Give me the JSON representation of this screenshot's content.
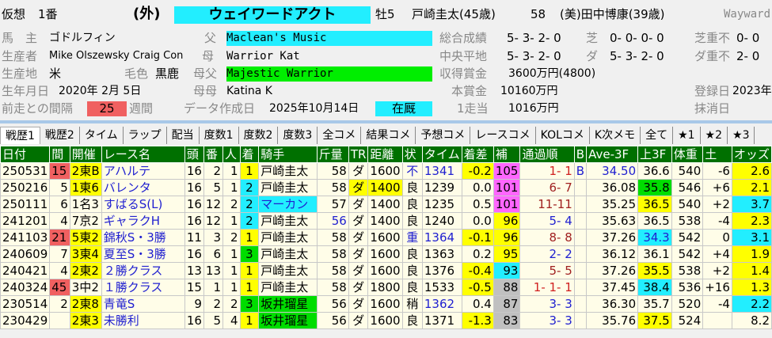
{
  "header": {
    "kaso": "仮想",
    "number": "1番",
    "gate": "(外)",
    "horse_name": "ウェイワードアクト",
    "sex_age": "牡5",
    "jockey": "戸崎圭太(45歳)",
    "weight": "58",
    "trainer": "(美)田中博康(39歳)",
    "english_name": "Wayward",
    "owner_label": "馬　主",
    "owner": "ゴドルフィン",
    "breeder_label": "生産者",
    "breeder": "Mike Olszewsky Craig Con",
    "origin_label": "生産地",
    "origin": "米",
    "color_label": "毛色",
    "color": "黒鹿",
    "birth_label": "生年月日",
    "birth": "2020年 2月 5日",
    "interval_label": "前走との間隔",
    "interval": "25",
    "interval_unit": "週間",
    "sire_label": "父",
    "sire": "Maclean's Music",
    "dam_label": "母",
    "dam": "Warrior Kat",
    "damsire_label": "母父",
    "damsire": "Majestic Warrior",
    "damdam_label": "母母",
    "damdam": "Katina K",
    "created_label": "データ作成日",
    "created": "2025年10月14日",
    "status": "在厩",
    "total_label": "総合成績",
    "total": "5- 3- 2- 0",
    "turf_label": "芝",
    "turf": "0- 0- 0- 0",
    "turf_heavy_label": "芝重不",
    "turf_heavy": "0- 0",
    "central_label": "中央平地",
    "central": "5- 3- 2- 0",
    "dirt_label": "ダ",
    "dirt": "5- 3- 2- 0",
    "dirt_heavy_label": "ダ重不",
    "dirt_heavy": "2- 0",
    "earn_label": "収得賞金",
    "earn": "3600万円(4800)",
    "prize_label": "本賞金",
    "prize": "10160万円",
    "per_label": "1走当",
    "per": "1016万円",
    "reg_label": "登録日",
    "reg": "2023年",
    "del_label": "抹消日"
  },
  "tabs": [
    "戦歴1",
    "戦歴2",
    "タイム",
    "ラップ",
    "配当",
    "度数1",
    "度数2",
    "度数3",
    "全コメ",
    "結果コメ",
    "予想コメ",
    "レースコメ",
    "KOLコメ",
    "K次メモ",
    "全て",
    "★1",
    "★2",
    "★3"
  ],
  "columns": [
    "日付",
    "間",
    "開催",
    "レース名",
    "頭",
    "番",
    "人",
    "着",
    "騎手",
    "斤量",
    "TR",
    "距離",
    "状",
    "タイム",
    "着差",
    "補",
    "通過順",
    "B",
    "Ave-3F",
    "上3F",
    "体重",
    "土",
    "オッズ"
  ],
  "rows": [
    [
      "250531",
      "15",
      "2東B",
      "アハルテ",
      "16",
      "2",
      "1",
      "1",
      "戸崎圭太",
      "58",
      "ダ",
      "1600",
      "不",
      "1341",
      "-0.2",
      "105",
      "1- 1",
      "B",
      "34.50",
      "36.6",
      "540",
      "-6",
      "2.6"
    ],
    [
      "250216",
      "5",
      "1東6",
      "バレンタ",
      "16",
      "5",
      "1",
      "2",
      "戸崎圭太",
      "58",
      "ダ",
      "1400",
      "良",
      "1239",
      "0.0",
      "101",
      "6- 7",
      "",
      "36.08",
      "35.8",
      "546",
      "+6",
      "2.1"
    ],
    [
      "250111",
      "6",
      "1名3",
      "すばるS(L)",
      "16",
      "12",
      "2",
      "2",
      "マーカン",
      "57",
      "ダ",
      "1400",
      "良",
      "1235",
      "0.5",
      "101",
      "11-11",
      "",
      "35.25",
      "36.5",
      "540",
      "+2",
      "3.7"
    ],
    [
      "241201",
      "4",
      "7京2",
      "ギャラクH",
      "16",
      "12",
      "1",
      "2",
      "戸崎圭太",
      "56",
      "ダ",
      "1400",
      "良",
      "1240",
      "0.0",
      "96",
      "5- 4",
      "",
      "35.63",
      "36.5",
      "538",
      "-4",
      "2.3"
    ],
    [
      "241103",
      "21",
      "5東2",
      "錦秋S・3勝",
      "11",
      "3",
      "2",
      "1",
      "戸崎圭太",
      "58",
      "ダ",
      "1600",
      "重",
      "1364",
      "-0.1",
      "96",
      "8- 8",
      "",
      "37.26",
      "34.3",
      "542",
      "0",
      "3.1"
    ],
    [
      "240609",
      "7",
      "3東4",
      "夏至S・3勝",
      "16",
      "6",
      "1",
      "3",
      "戸崎圭太",
      "58",
      "ダ",
      "1600",
      "良",
      "1363",
      "0.2",
      "95",
      "2- 2",
      "",
      "36.12",
      "36.1",
      "542",
      "+4",
      "1.9"
    ],
    [
      "240421",
      "4",
      "2東2",
      "２勝クラス",
      "13",
      "13",
      "1",
      "1",
      "戸崎圭太",
      "58",
      "ダ",
      "1600",
      "良",
      "1376",
      "-0.4",
      "93",
      "5- 5",
      "",
      "37.26",
      "35.5",
      "538",
      "+2",
      "1.4"
    ],
    [
      "240324",
      "45",
      "3中2",
      "１勝クラス",
      "15",
      "1",
      "1",
      "1",
      "戸崎圭太",
      "58",
      "ダ",
      "1800",
      "良",
      "1533",
      "-0.5",
      "88",
      "1- 1- 1",
      "",
      "37.45",
      "38.4",
      "536",
      "+16",
      "1.3"
    ],
    [
      "230514",
      "2",
      "2東8",
      "青竜S",
      "9",
      "2",
      "2",
      "3",
      "坂井瑠星",
      "56",
      "ダ",
      "1600",
      "稍",
      "1362",
      "0.4",
      "87",
      "3- 3",
      "",
      "36.30",
      "35.7",
      "520",
      "-4",
      "2.2"
    ],
    [
      "230429",
      "",
      "2東3",
      "未勝利",
      "16",
      "5",
      "4",
      "1",
      "坂井瑠星",
      "56",
      "ダ",
      "1600",
      "良",
      "1371",
      "-1.3",
      "83",
      "3- 3",
      "",
      "35.76",
      "37.5",
      "524",
      "",
      "8.2"
    ]
  ],
  "cell_classes": [
    [
      "",
      "pr",
      "y",
      "blue",
      "r",
      "r",
      "r",
      "y c",
      "",
      "r",
      "c",
      "r",
      "blue c",
      "blue",
      "y r",
      "pk",
      "red r",
      "blue",
      "blue r",
      "r",
      "r",
      "r",
      "y r"
    ],
    [
      "",
      "r",
      "y",
      "blue",
      "r",
      "r",
      "r",
      "cy c",
      "",
      "r",
      "y c",
      "y r",
      "c",
      "",
      "r",
      "pk",
      "dred r",
      "",
      "r",
      "gr r",
      "r",
      "r",
      "y r"
    ],
    [
      "",
      "r",
      "",
      "blue",
      "r",
      "r",
      "r",
      "cy c",
      "cy blue",
      "r",
      "c",
      "r",
      "c",
      "",
      "r",
      "pk",
      "dred r",
      "",
      "r",
      "y r",
      "r",
      "r",
      "cy r"
    ],
    [
      "",
      "r",
      "",
      "blue",
      "r",
      "r",
      "r",
      "cy c",
      "",
      "blue r",
      "c",
      "r",
      "c",
      "",
      "r",
      "y r",
      "blue r",
      "",
      "r",
      "r",
      "r",
      "r",
      "y r"
    ],
    [
      "",
      "pr",
      "y",
      "blue",
      "r",
      "r",
      "r",
      "y c",
      "",
      "r",
      "c",
      "r",
      "blue c",
      "blue",
      "y r",
      "y r",
      "dred r",
      "",
      "r",
      "cy blue r",
      "r",
      "r",
      "cy r"
    ],
    [
      "",
      "r",
      "y",
      "blue",
      "r",
      "r",
      "r",
      "gr c",
      "",
      "r",
      "c",
      "r",
      "c",
      "",
      "r",
      "y r",
      "blue r",
      "",
      "r",
      "r",
      "r",
      "r",
      "y r"
    ],
    [
      "",
      "r",
      "y",
      "blue",
      "r",
      "r",
      "r",
      "y c",
      "",
      "r",
      "c",
      "r",
      "c",
      "",
      "y r",
      "cy r",
      "dred r",
      "",
      "r",
      "y r",
      "r",
      "r",
      "y r"
    ],
    [
      "",
      "pr",
      "",
      "blue",
      "r",
      "r",
      "r",
      "y c",
      "",
      "r",
      "c",
      "r",
      "c",
      "",
      "y r",
      "gy r",
      "red r",
      "",
      "r",
      "cy r",
      "r",
      "r",
      "y r"
    ],
    [
      "",
      "r",
      "y",
      "blue",
      "r",
      "r",
      "r",
      "gr c",
      "gr",
      "r",
      "c",
      "r",
      "c",
      "blue",
      "r",
      "gy r",
      "blue r",
      "",
      "r",
      "r",
      "r",
      "r",
      "cy r"
    ],
    [
      "",
      "r",
      "y",
      "blue",
      "r",
      "r",
      "r",
      "y c",
      "gr",
      "r",
      "c",
      "r",
      "c",
      "",
      "y r",
      "gy r",
      "blue r",
      "",
      "r",
      "y r",
      "r",
      "r",
      "r"
    ]
  ],
  "colors": {
    "header_green": "#007000",
    "cyan": "#22eeff",
    "yellow": "#ffff00",
    "green": "#00dd00",
    "pink": "#ff66ff",
    "red": "#f06060"
  }
}
